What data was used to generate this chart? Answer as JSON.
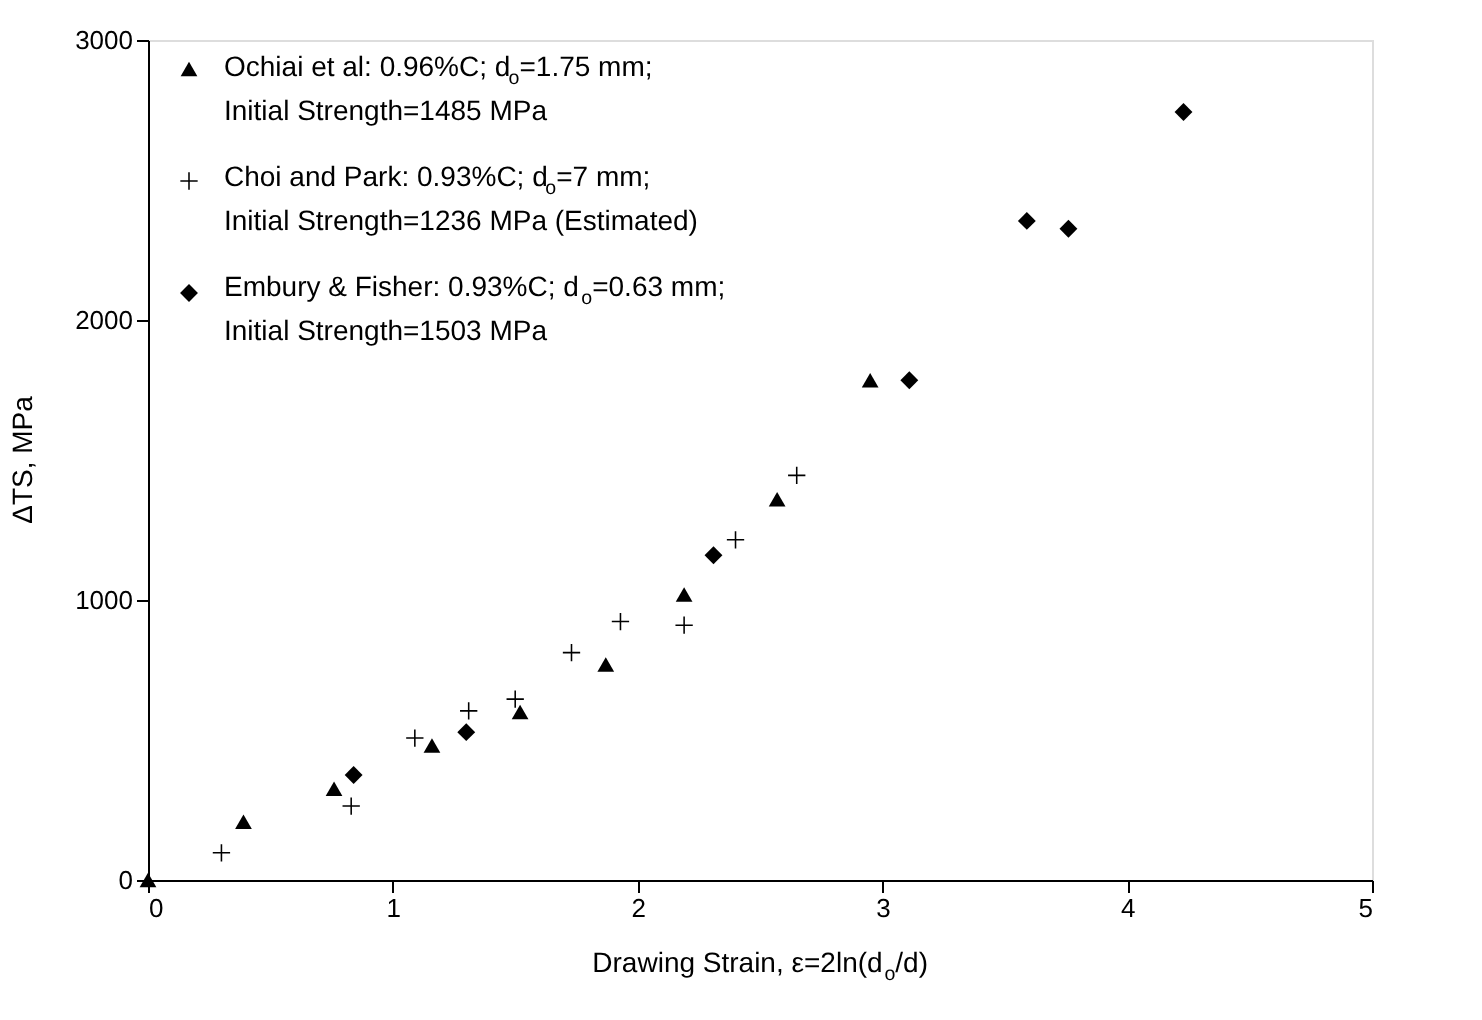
{
  "chart_data": {
    "type": "scatter",
    "xlabel": "Drawing Strain, ε=2ln(d$_{o}$/d)",
    "ylabel": "ΔTS,  MPa",
    "xlim": [
      0,
      5
    ],
    "xticks": [
      0,
      1,
      2,
      3,
      4,
      5
    ],
    "ylim": [
      0,
      3000
    ],
    "yticks": [
      0,
      1000,
      2000,
      3000
    ],
    "grid": false,
    "legend": "top left",
    "series": [
      {
        "name": "Ochiai et al: 0.96%C; d$_{o}$=1.75 mm;\nInitial Strength=1485 MPa",
        "color": "#000000",
        "marker": "triangle",
        "x": [
          0,
          0.39,
          0.76,
          1.16,
          1.52,
          1.87,
          2.19,
          2.57,
          2.95
        ],
        "values": [
          0,
          208,
          326,
          480,
          600,
          770,
          1020,
          1360,
          1785
        ]
      },
      {
        "name": "Choi and Park: 0.93%C; d$_{o}$=7 mm;\nInitial Strength=1236 MPa (Estimated)",
        "color": "#000000",
        "marker": "cross",
        "x": [
          0.3,
          0.83,
          1.09,
          1.31,
          1.5,
          1.73,
          1.93,
          2.19,
          2.4,
          2.65
        ],
        "values": [
          97,
          264,
          507,
          604,
          646,
          812,
          923,
          910,
          1215,
          1445
        ]
      },
      {
        "name": "Embury & Fisher: 0.93%C; d$_{o}$=0.63 mm;\nInitial Strength=1503 MPa",
        "color": "#000000",
        "marker": "diamond",
        "x": [
          0.84,
          1.3,
          2.31,
          3.11,
          3.59,
          3.76,
          4.23
        ],
        "values": [
          375,
          528,
          1160,
          1785,
          2354,
          2326,
          2743
        ]
      }
    ]
  }
}
